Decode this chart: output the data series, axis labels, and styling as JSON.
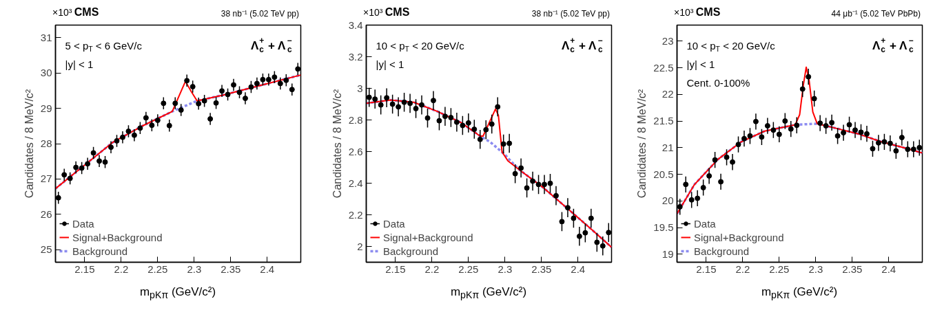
{
  "chart_data": [
    {
      "type": "scatter",
      "title": "CMS",
      "subtitle": "38 nb⁻¹ (5.02 TeV pp)",
      "xlabel": "m$_{pKπ}$ (GeV/c²)",
      "ylabel": "Candidates / 8 MeV/c²",
      "annotations": [
        "×10³",
        "5 < p$_{T}$ < 6 GeV/c",
        "|y| < 1",
        "Λ$_{c}$$^{+}$ + Λ$_{c}$$^{−}$"
      ],
      "xlim": [
        2.11,
        2.446
      ],
      "xticks": [
        2.15,
        2.2,
        2.25,
        2.3,
        2.35,
        2.4
      ],
      "ylim": [
        24.65,
        31.35
      ],
      "yticks": [
        25,
        26,
        27,
        28,
        29,
        30,
        31
      ],
      "legend": "bottom left",
      "series": [
        {
          "name": "Data",
          "marker": "circle",
          "color": "#000000",
          "x": [
            2.114,
            2.122,
            2.13,
            2.138,
            2.146,
            2.154,
            2.162,
            2.17,
            2.178,
            2.186,
            2.194,
            2.202,
            2.21,
            2.218,
            2.226,
            2.234,
            2.242,
            2.25,
            2.258,
            2.266,
            2.274,
            2.282,
            2.29,
            2.298,
            2.306,
            2.314,
            2.322,
            2.33,
            2.338,
            2.346,
            2.354,
            2.362,
            2.37,
            2.378,
            2.386,
            2.394,
            2.402,
            2.41,
            2.418,
            2.426,
            2.434,
            2.442
          ],
          "values": [
            26.47,
            27.12,
            27.02,
            27.33,
            27.31,
            27.43,
            27.74,
            27.51,
            27.48,
            27.9,
            28.08,
            28.18,
            28.35,
            28.24,
            28.44,
            28.73,
            28.52,
            28.66,
            29.14,
            28.51,
            29.14,
            28.95,
            29.78,
            29.61,
            29.13,
            29.21,
            28.7,
            29.15,
            29.49,
            29.39,
            29.66,
            29.45,
            29.28,
            29.6,
            29.7,
            29.81,
            29.81,
            29.88,
            29.7,
            29.79,
            29.53,
            30.11
          ],
          "errors": [
            0.17,
            0.17,
            0.17,
            0.17,
            0.17,
            0.17,
            0.17,
            0.17,
            0.17,
            0.17,
            0.17,
            0.17,
            0.17,
            0.17,
            0.17,
            0.17,
            0.17,
            0.17,
            0.17,
            0.17,
            0.17,
            0.17,
            0.17,
            0.17,
            0.17,
            0.17,
            0.17,
            0.17,
            0.17,
            0.17,
            0.17,
            0.17,
            0.17,
            0.17,
            0.17,
            0.17,
            0.17,
            0.17,
            0.17,
            0.17,
            0.17,
            0.17
          ]
        },
        {
          "name": "Signal+Background",
          "type": "line",
          "color": "#ff0000",
          "line_style": "solid",
          "x": [
            2.11,
            2.149,
            2.188,
            2.228,
            2.27,
            2.288,
            2.296,
            2.304,
            2.339,
            2.388,
            2.446
          ],
          "values": [
            26.73,
            27.38,
            28.03,
            28.49,
            28.91,
            29.76,
            29.47,
            29.21,
            29.37,
            29.63,
            29.94
          ]
        },
        {
          "name": "Background",
          "type": "line",
          "color": "#8c8cf0",
          "line_style": "dashed",
          "x": [
            2.11,
            2.149,
            2.188,
            2.228,
            2.27,
            2.304,
            2.339,
            2.388,
            2.446
          ],
          "values": [
            26.73,
            27.38,
            28.03,
            28.49,
            28.91,
            29.21,
            29.37,
            29.63,
            29.94
          ]
        }
      ]
    },
    {
      "type": "scatter",
      "title": "CMS",
      "subtitle": "38 nb⁻¹ (5.02 TeV pp)",
      "xlabel": "m$_{pKπ}$ (GeV/c²)",
      "ylabel": "Candidates / 8 MeV/c²",
      "annotations": [
        "×10³",
        "10 < p$_{T}$ < 20 GeV/c",
        "|y| < 1",
        "Λ$_{c}$$^{+}$ + Λ$_{c}$$^{−}$"
      ],
      "xlim": [
        2.11,
        2.446
      ],
      "xticks": [
        2.15,
        2.2,
        2.25,
        2.3,
        2.35,
        2.4
      ],
      "ylim": [
        1.9,
        3.4
      ],
      "yticks": [
        2,
        2.2,
        2.4,
        2.6,
        2.8,
        3,
        3.2,
        3.4
      ],
      "legend": "bottom left",
      "series": [
        {
          "name": "Data",
          "marker": "circle",
          "color": "#000000",
          "x": [
            2.114,
            2.122,
            2.13,
            2.138,
            2.146,
            2.154,
            2.162,
            2.17,
            2.178,
            2.186,
            2.194,
            2.202,
            2.21,
            2.218,
            2.226,
            2.234,
            2.242,
            2.25,
            2.258,
            2.266,
            2.274,
            2.282,
            2.29,
            2.298,
            2.306,
            2.314,
            2.322,
            2.33,
            2.338,
            2.346,
            2.354,
            2.362,
            2.37,
            2.378,
            2.386,
            2.394,
            2.402,
            2.41,
            2.418,
            2.426,
            2.434,
            2.442
          ],
          "values": [
            2.943,
            2.932,
            2.895,
            2.94,
            2.9,
            2.883,
            2.912,
            2.905,
            2.872,
            2.895,
            2.812,
            2.923,
            2.795,
            2.823,
            2.815,
            2.786,
            2.765,
            2.781,
            2.741,
            2.677,
            2.738,
            2.774,
            2.883,
            2.648,
            2.652,
            2.46,
            2.496,
            2.37,
            2.413,
            2.392,
            2.392,
            2.399,
            2.321,
            2.157,
            2.245,
            2.178,
            2.064,
            2.086,
            2.178,
            2.026,
            2.003,
            2.088
          ],
          "errors": [
            0.06,
            0.06,
            0.06,
            0.06,
            0.06,
            0.06,
            0.06,
            0.06,
            0.06,
            0.06,
            0.06,
            0.06,
            0.06,
            0.06,
            0.06,
            0.06,
            0.06,
            0.06,
            0.06,
            0.06,
            0.06,
            0.06,
            0.06,
            0.06,
            0.06,
            0.06,
            0.06,
            0.06,
            0.06,
            0.06,
            0.06,
            0.06,
            0.06,
            0.06,
            0.06,
            0.06,
            0.06,
            0.06,
            0.06,
            0.06,
            0.06,
            0.06
          ]
        },
        {
          "name": "Signal+Background",
          "type": "line",
          "color": "#ff0000",
          "line_style": "solid",
          "x": [
            2.11,
            2.143,
            2.175,
            2.207,
            2.24,
            2.266,
            2.27,
            2.28,
            2.287,
            2.291,
            2.296,
            2.304,
            2.32,
            2.353,
            2.385,
            2.417,
            2.446
          ],
          "values": [
            2.905,
            2.926,
            2.912,
            2.855,
            2.783,
            2.698,
            2.698,
            2.798,
            2.869,
            2.83,
            2.598,
            2.541,
            2.484,
            2.37,
            2.242,
            2.114,
            1.995
          ]
        },
        {
          "name": "Background",
          "type": "line",
          "color": "#8c8cf0",
          "line_style": "dashed",
          "x": [
            2.11,
            2.143,
            2.175,
            2.207,
            2.24,
            2.266,
            2.28,
            2.29,
            2.3,
            2.31,
            2.32,
            2.353,
            2.385,
            2.417,
            2.446
          ],
          "values": [
            2.905,
            2.926,
            2.912,
            2.855,
            2.783,
            2.698,
            2.66,
            2.62,
            2.58,
            2.53,
            2.484,
            2.37,
            2.242,
            2.114,
            1.995
          ]
        }
      ]
    },
    {
      "type": "scatter",
      "title": "CMS",
      "subtitle": "44 μb⁻¹ (5.02 TeV PbPb)",
      "xlabel": "m$_{pKπ}$ (GeV/c²)",
      "ylabel": "Candidates / 8 MeV/c²",
      "annotations": [
        "×10³",
        "10 < p$_{T}$ < 20 GeV/c",
        "|y| < 1",
        "Cent. 0-100%",
        "Λ$_{c}$$^{+}$ + Λ$_{c}$$^{−}$"
      ],
      "xlim": [
        2.11,
        2.446
      ],
      "xticks": [
        2.15,
        2.2,
        2.25,
        2.3,
        2.35,
        2.4
      ],
      "ylim": [
        18.85,
        23.3
      ],
      "yticks": [
        19,
        19.5,
        20,
        20.5,
        21,
        21.5,
        22,
        22.5,
        23
      ],
      "legend": "bottom left",
      "series": [
        {
          "name": "Data",
          "marker": "circle",
          "color": "#000000",
          "x": [
            2.114,
            2.122,
            2.13,
            2.138,
            2.146,
            2.154,
            2.162,
            2.17,
            2.178,
            2.186,
            2.194,
            2.202,
            2.21,
            2.218,
            2.226,
            2.234,
            2.242,
            2.25,
            2.258,
            2.266,
            2.274,
            2.282,
            2.29,
            2.298,
            2.306,
            2.314,
            2.322,
            2.33,
            2.338,
            2.346,
            2.354,
            2.362,
            2.37,
            2.378,
            2.386,
            2.394,
            2.402,
            2.41,
            2.418,
            2.426,
            2.434,
            2.442
          ],
          "values": [
            19.89,
            20.31,
            20.02,
            20.05,
            20.25,
            20.47,
            20.77,
            20.36,
            20.82,
            20.73,
            21.06,
            21.17,
            21.22,
            21.49,
            21.2,
            21.41,
            21.33,
            21.25,
            21.5,
            21.35,
            21.42,
            22.1,
            22.33,
            21.92,
            21.46,
            21.41,
            21.47,
            21.22,
            21.28,
            21.43,
            21.33,
            21.29,
            21.26,
            20.98,
            21.09,
            21.11,
            21.08,
            20.94,
            21.19,
            20.97,
            20.97,
            21.0
          ],
          "errors": [
            0.15,
            0.15,
            0.15,
            0.15,
            0.15,
            0.15,
            0.15,
            0.15,
            0.15,
            0.15,
            0.15,
            0.15,
            0.15,
            0.15,
            0.15,
            0.15,
            0.15,
            0.15,
            0.15,
            0.15,
            0.15,
            0.15,
            0.15,
            0.15,
            0.15,
            0.15,
            0.15,
            0.15,
            0.15,
            0.15,
            0.15,
            0.15,
            0.15,
            0.15,
            0.15,
            0.15,
            0.15,
            0.15,
            0.15,
            0.15,
            0.15,
            0.15
          ]
        },
        {
          "name": "Signal+Background",
          "type": "line",
          "color": "#ff0000",
          "line_style": "solid",
          "x": [
            2.11,
            2.134,
            2.166,
            2.198,
            2.23,
            2.272,
            2.278,
            2.283,
            2.287,
            2.291,
            2.296,
            2.302,
            2.326,
            2.358,
            2.39,
            2.423,
            2.446
          ],
          "values": [
            19.76,
            20.31,
            20.78,
            21.11,
            21.31,
            21.43,
            21.62,
            22.17,
            22.51,
            22.26,
            21.67,
            21.45,
            21.37,
            21.26,
            21.11,
            20.99,
            20.9
          ]
        },
        {
          "name": "Background",
          "type": "line",
          "color": "#8c8cf0",
          "line_style": "dashed",
          "x": [
            2.11,
            2.134,
            2.166,
            2.198,
            2.23,
            2.272,
            2.302,
            2.326,
            2.358,
            2.39,
            2.423,
            2.446
          ],
          "values": [
            19.76,
            20.31,
            20.78,
            21.11,
            21.31,
            21.43,
            21.45,
            21.37,
            21.26,
            21.11,
            20.99,
            20.9
          ]
        }
      ]
    }
  ]
}
